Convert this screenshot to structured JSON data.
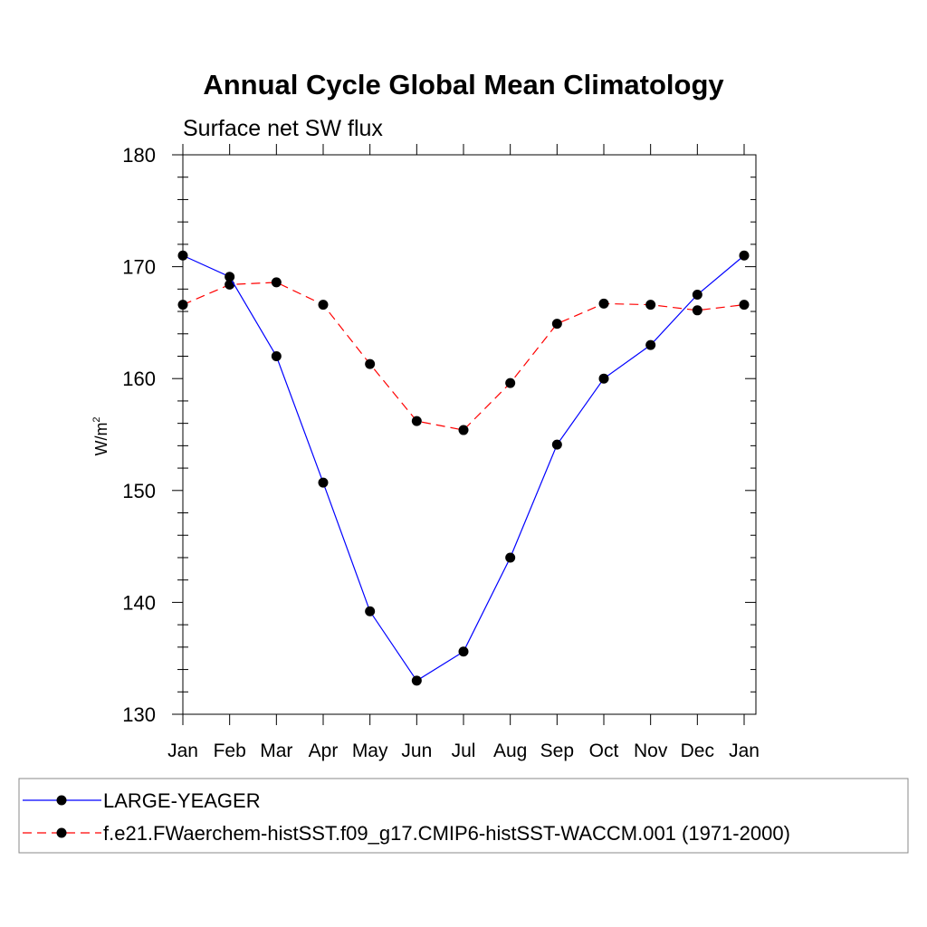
{
  "chart_data": {
    "type": "line",
    "title": "Annual Cycle Global Mean Climatology",
    "subtitle": "Surface net SW flux",
    "xlabel": "",
    "ylabel": "W/m",
    "ylabel_superscript": "2",
    "categories": [
      "Jan",
      "Feb",
      "Mar",
      "Apr",
      "May",
      "Jun",
      "Jul",
      "Aug",
      "Sep",
      "Oct",
      "Nov",
      "Dec",
      "Jan"
    ],
    "ylim": [
      130,
      180
    ],
    "yticks": [
      130,
      140,
      150,
      160,
      170,
      180
    ],
    "grid": false,
    "legend_position": "bottom",
    "series": [
      {
        "name": "LARGE-YEAGER",
        "color": "#0000ff",
        "dash": "solid",
        "values": [
          171.0,
          169.1,
          162.0,
          150.7,
          139.2,
          133.0,
          135.6,
          144.0,
          154.1,
          160.0,
          163.0,
          167.5,
          171.0
        ]
      },
      {
        "name": "f.e21.FWaerchem-histSST.f09_g17.CMIP6-histSST-WACCM.001 (1971-2000)",
        "color": "#ff0000",
        "dash": "dashed",
        "values": [
          166.6,
          168.4,
          168.6,
          166.6,
          161.3,
          156.2,
          155.4,
          159.6,
          164.9,
          166.7,
          166.6,
          166.1,
          166.6
        ]
      }
    ]
  }
}
